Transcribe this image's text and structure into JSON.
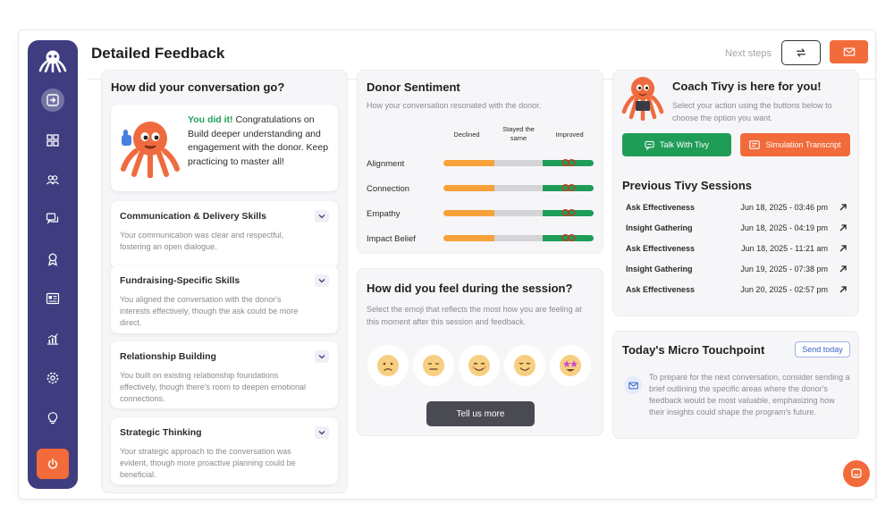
{
  "colors": {
    "sidebar": "#3f3d80",
    "accent_orange": "#f26b3a",
    "accent_green": "#1f9d57",
    "bar_orange": "#f6a23a",
    "bar_grey": "#d4d4d8"
  },
  "header": {
    "title": "Detailed Feedback",
    "next_steps": "Next steps",
    "refresh_icon": "refresh-icon",
    "mail_icon": "mail-icon"
  },
  "sidebar": {
    "items": [
      "exit-icon",
      "grid-icon",
      "users-icon",
      "chat-icon",
      "award-icon",
      "id-card-icon",
      "chart-icon",
      "settings-icon",
      "lightbulb-icon",
      "power-icon"
    ]
  },
  "conversation": {
    "title": "How did your conversation go?",
    "congrats_highlight": "You did it!",
    "congrats_text": " Congratulations on Build deeper understanding and engagement with the donor. Keep practicing to master all!",
    "skills": [
      {
        "title": "Communication & Delivery Skills",
        "desc": "Your communication was clear and respectful, fostering an open dialogue."
      },
      {
        "title": "Fundraising-Specific Skills",
        "desc": "You aligned the conversation with the donor's interests effectively, though the ask could be more direct."
      },
      {
        "title": "Relationship Building",
        "desc": "You built on existing relationship foundations effectively, though there's room to deepen emotional connections."
      },
      {
        "title": "Strategic Thinking",
        "desc": "Your strategic approach to the conversation was evident, though more proactive planning could be beneficial."
      }
    ]
  },
  "sentiment": {
    "title": "Donor Sentiment",
    "subtitle": "How your conversation resonated with the donor.",
    "columns": [
      "Declined",
      "Stayed the same",
      "Improved"
    ],
    "rows": [
      {
        "label": "Alignment",
        "result": "Improved"
      },
      {
        "label": "Connection",
        "result": "Improved"
      },
      {
        "label": "Empathy",
        "result": "Improved"
      },
      {
        "label": "Impact Belief",
        "result": "Improved"
      }
    ]
  },
  "feeling": {
    "title": "How did you feel during the session?",
    "subtitle": "Select the emoji that reflects the most how you are feeling at this moment after this session and feedback.",
    "emojis": [
      "sad-face-icon",
      "neutral-face-icon",
      "smiling-face-icon",
      "content-face-icon",
      "star-eyes-face-icon"
    ],
    "button": "Tell us more"
  },
  "coach": {
    "title": "Coach Tivy is here for you!",
    "subtitle": "Select your action using the buttons below to choose the option you want.",
    "talk_button": "Talk With Tivy",
    "sim_button": "Simulation Transcript"
  },
  "sessions": {
    "title": "Previous Tivy Sessions",
    "items": [
      {
        "name": "Ask Effectiveness",
        "date": "Jun 18, 2025 - 03:46 pm"
      },
      {
        "name": "Insight Gathering",
        "date": "Jun 18, 2025 - 04:19 pm"
      },
      {
        "name": "Ask Effectiveness",
        "date": "Jun 18, 2025 - 11:21 am"
      },
      {
        "name": "Insight Gathering",
        "date": "Jun 19, 2025 - 07:38 pm"
      },
      {
        "name": "Ask Effectiveness",
        "date": "Jun 20, 2025 - 02:57 pm"
      }
    ]
  },
  "micro": {
    "title": "Today's Micro Touchpoint",
    "button": "Send today",
    "text": "To prepare for the next conversation, consider sending a brief outlining the specific areas where the donor's feedback would be most valuable, emphasizing how their insights could shape the program's future."
  }
}
